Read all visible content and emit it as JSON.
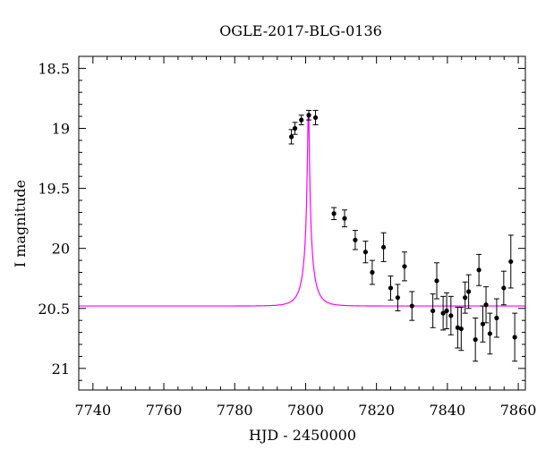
{
  "colors": {
    "background": "#ffffff",
    "axis": "#000000",
    "points": "#000000",
    "model_curve": "#ff00ff"
  },
  "chart_data": {
    "type": "scatter",
    "title": "OGLE-2017-BLG-0136",
    "xlabel": "HJD - 2450000",
    "ylabel": "I magnitude",
    "xlim": [
      7736,
      7862
    ],
    "ylim": [
      21.18,
      18.4
    ],
    "y_inverted": true,
    "xticks": [
      7740,
      7760,
      7780,
      7800,
      7820,
      7840,
      7860
    ],
    "xtick_labels": [
      "7740",
      "7760",
      "7780",
      "7800",
      "7820",
      "7840",
      "7860"
    ],
    "yticks": [
      18.5,
      19,
      19.5,
      20,
      20.5,
      21
    ],
    "ytick_labels": [
      "18.5",
      "19",
      "19.5",
      "20",
      "20.5",
      "21"
    ],
    "x_minor_step": 4,
    "y_minor_step": 0.1,
    "legend": "none",
    "grid": false,
    "series": [
      {
        "type": "scatter_errorbars",
        "color": "#000000",
        "points": [
          {
            "x": 7796.0,
            "y": 19.07,
            "err": 0.06
          },
          {
            "x": 7797.0,
            "y": 19.0,
            "err": 0.05
          },
          {
            "x": 7798.8,
            "y": 18.93,
            "err": 0.04
          },
          {
            "x": 7800.9,
            "y": 18.89,
            "err": 0.04
          },
          {
            "x": 7802.8,
            "y": 18.91,
            "err": 0.06
          },
          {
            "x": 7808.0,
            "y": 19.71,
            "err": 0.05
          },
          {
            "x": 7811.0,
            "y": 19.75,
            "err": 0.07
          },
          {
            "x": 7814.0,
            "y": 19.93,
            "err": 0.08
          },
          {
            "x": 7816.9,
            "y": 20.03,
            "err": 0.09
          },
          {
            "x": 7818.8,
            "y": 20.2,
            "err": 0.1
          },
          {
            "x": 7822.0,
            "y": 19.99,
            "err": 0.12
          },
          {
            "x": 7824.0,
            "y": 20.33,
            "err": 0.1
          },
          {
            "x": 7826.0,
            "y": 20.41,
            "err": 0.11
          },
          {
            "x": 7827.9,
            "y": 20.15,
            "err": 0.12
          },
          {
            "x": 7830.0,
            "y": 20.48,
            "err": 0.12
          },
          {
            "x": 7835.9,
            "y": 20.52,
            "err": 0.14
          },
          {
            "x": 7837.0,
            "y": 20.27,
            "err": 0.15
          },
          {
            "x": 7838.8,
            "y": 20.54,
            "err": 0.14
          },
          {
            "x": 7839.8,
            "y": 20.52,
            "err": 0.15
          },
          {
            "x": 7841.0,
            "y": 20.56,
            "err": 0.16
          },
          {
            "x": 7842.9,
            "y": 20.66,
            "err": 0.17
          },
          {
            "x": 7843.9,
            "y": 20.67,
            "err": 0.18
          },
          {
            "x": 7845.0,
            "y": 20.41,
            "err": 0.13
          },
          {
            "x": 7846.0,
            "y": 20.36,
            "err": 0.14
          },
          {
            "x": 7847.9,
            "y": 20.76,
            "err": 0.18
          },
          {
            "x": 7848.9,
            "y": 20.18,
            "err": 0.13
          },
          {
            "x": 7850.0,
            "y": 20.63,
            "err": 0.15
          },
          {
            "x": 7850.9,
            "y": 20.47,
            "err": 0.15
          },
          {
            "x": 7852.0,
            "y": 20.71,
            "err": 0.17
          },
          {
            "x": 7853.9,
            "y": 20.58,
            "err": 0.16
          },
          {
            "x": 7855.9,
            "y": 20.33,
            "err": 0.14
          },
          {
            "x": 7857.9,
            "y": 20.11,
            "err": 0.22
          },
          {
            "x": 7859.0,
            "y": 20.74,
            "err": 0.2
          }
        ]
      },
      {
        "type": "line",
        "color": "#ff00ff",
        "model": {
          "t0": 7800.8,
          "tE": 3.4,
          "u0": 0.06,
          "f_source": 0.24,
          "mag_scale": 20.07
        }
      }
    ]
  }
}
